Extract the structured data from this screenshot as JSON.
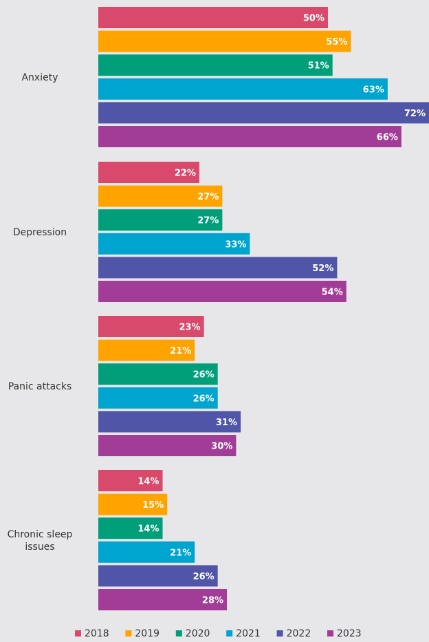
{
  "chart_data": {
    "type": "bar",
    "orientation": "horizontal",
    "categories": [
      "Anxiety",
      "Depression",
      "Panic attacks",
      "Chronic sleep issues"
    ],
    "category_lines": [
      [
        "Anxiety"
      ],
      [
        "Depression"
      ],
      [
        "Panic attacks"
      ],
      [
        "Chronic sleep",
        "issues"
      ]
    ],
    "series": [
      {
        "name": "2018",
        "color": "#d9496b",
        "values": [
          50,
          22,
          23,
          14
        ],
        "labels": [
          "50%",
          "22%",
          "23%",
          "14%"
        ]
      },
      {
        "name": "2019",
        "color": "#ffa300",
        "values": [
          55,
          27,
          21,
          15
        ],
        "labels": [
          "55%",
          "27%",
          "21%",
          "15%"
        ]
      },
      {
        "name": "2020",
        "color": "#009f7a",
        "values": [
          51,
          27,
          26,
          14
        ],
        "labels": [
          "51%",
          "27%",
          "26%",
          "14%"
        ]
      },
      {
        "name": "2021",
        "color": "#00a5cf",
        "values": [
          63,
          33,
          26,
          21
        ],
        "labels": [
          "63%",
          "33%",
          "26%",
          "21%"
        ]
      },
      {
        "name": "2022",
        "color": "#5055a8",
        "values": [
          72,
          52,
          31,
          26
        ],
        "labels": [
          "72%",
          "52%",
          "31%",
          "26%"
        ]
      },
      {
        "name": "2023",
        "color": "#a13d96",
        "values": [
          66,
          54,
          30,
          28
        ],
        "labels": [
          "66%",
          "54%",
          "30%",
          "28%"
        ]
      }
    ],
    "xlim": [
      0,
      72
    ],
    "grid": false,
    "legend": "bottom",
    "title": "",
    "xlabel": "",
    "ylabel": ""
  }
}
